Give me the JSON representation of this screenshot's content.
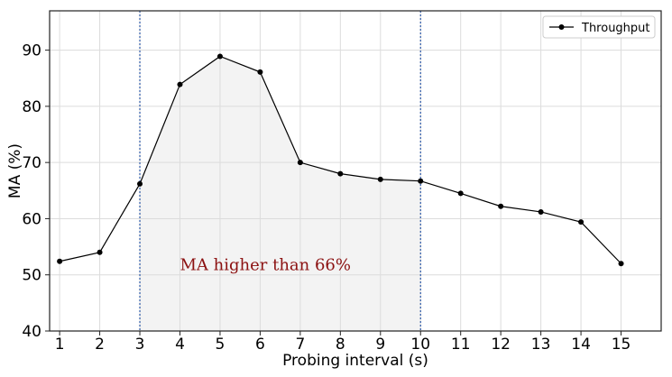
{
  "chart_data": {
    "type": "line",
    "title": "",
    "xlabel": "Probing interval (s)",
    "ylabel": "MA (%)",
    "xlim": [
      0.75,
      16
    ],
    "ylim": [
      40,
      97
    ],
    "xticks": [
      1,
      2,
      3,
      4,
      5,
      6,
      7,
      8,
      9,
      10,
      11,
      12,
      13,
      14,
      15
    ],
    "yticks": [
      40,
      50,
      60,
      70,
      80,
      90
    ],
    "grid": true,
    "legend": {
      "placement": "top-right"
    },
    "series": [
      {
        "name": "Throughput",
        "color": "#000000",
        "marker": "circle",
        "x": [
          1,
          2,
          3,
          4,
          5,
          6,
          7,
          8,
          9,
          10,
          11,
          12,
          13,
          14,
          15
        ],
        "y": [
          52.4,
          54.0,
          66.2,
          83.9,
          88.9,
          86.1,
          70.0,
          68.0,
          67.0,
          66.7,
          64.5,
          62.2,
          61.2,
          59.4,
          52.0
        ]
      }
    ],
    "shaded_region": {
      "x_start": 3,
      "x_end": 10,
      "color": "#f3f3f3"
    },
    "vertical_lines": [
      {
        "x": 3,
        "color": "#2a57a8",
        "style": "dotted"
      },
      {
        "x": 10,
        "color": "#2a57a8",
        "style": "dotted"
      }
    ],
    "annotation": {
      "text": "MA higher than 66%",
      "x": 4,
      "y": 50.8,
      "color": "#8b1010"
    }
  }
}
